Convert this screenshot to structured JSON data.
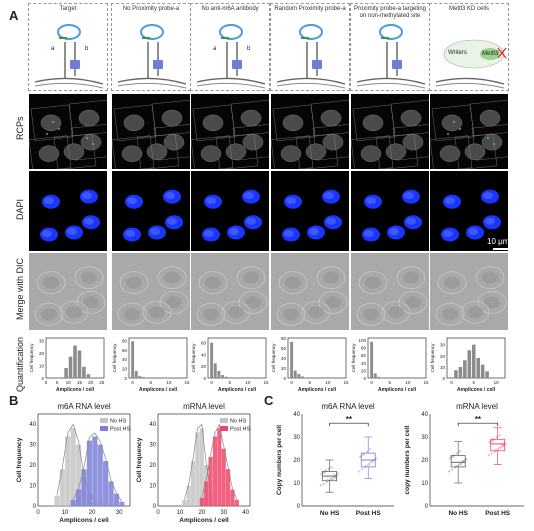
{
  "panel_labels": {
    "a": "A",
    "b": "B",
    "c": "C"
  },
  "schematics": [
    {
      "title": "Target",
      "labels": [
        "a",
        "b"
      ]
    },
    {
      "title": "No Proximity probe-a",
      "labels": []
    },
    {
      "title": "No anti-m6A antibody",
      "labels": [
        "a",
        "b"
      ]
    },
    {
      "title": "Random Proximity probe-a",
      "labels": []
    },
    {
      "title": "Proximity probe-a targeting on non-methylated site",
      "labels": []
    },
    {
      "title": "Mettl3 KD cells",
      "labels": [
        "Writers",
        "Mettl3"
      ]
    }
  ],
  "row_labels": {
    "rcp": "RCPs",
    "dapi": "DAPI",
    "dic": "Merge with DIC",
    "quant": "Quantification"
  },
  "scale_bar": "10 μm",
  "hist_common": {
    "ylabel": "Cell frequency",
    "xlabel": "Amplicons / cell"
  },
  "colors": {
    "bar_gray": "#8c8c8c",
    "no_hs": "#c4c4c4",
    "m6a_post_hs": "#7b7fd6",
    "mrna_post_hs": "#f0466a",
    "dapi_blue": "#1a35ff"
  },
  "chart_data": [
    {
      "type": "bar",
      "panel": "A-1",
      "xticks": [
        0,
        5,
        10,
        15,
        20,
        25
      ],
      "yticks": [
        0,
        10,
        20,
        30
      ],
      "x": [
        9,
        11,
        13,
        15,
        17,
        19
      ],
      "values": [
        8,
        17,
        26,
        22,
        9,
        3
      ],
      "xlim": [
        0,
        26
      ],
      "ylim": [
        0,
        32
      ],
      "xlabel": "Amplicons / cell",
      "ylabel": "Cell frequency"
    },
    {
      "type": "bar",
      "panel": "A-2",
      "xticks": [
        0,
        5,
        10,
        15
      ],
      "yticks": [
        0,
        20,
        40,
        60,
        80
      ],
      "x": [
        0,
        1,
        2,
        3,
        4
      ],
      "values": [
        78,
        15,
        4,
        2,
        1
      ],
      "xlim": [
        -1,
        15
      ],
      "ylim": [
        0,
        85
      ],
      "xlabel": "Amplicons / cell",
      "ylabel": "Cell frequency"
    },
    {
      "type": "bar",
      "panel": "A-3",
      "xticks": [
        0,
        5,
        10,
        15
      ],
      "yticks": [
        0,
        20,
        40,
        60
      ],
      "x": [
        0,
        1,
        2,
        3,
        4
      ],
      "values": [
        60,
        25,
        12,
        5,
        2
      ],
      "xlim": [
        -1,
        15
      ],
      "ylim": [
        0,
        68
      ],
      "xlabel": "Amplicons / cell",
      "ylabel": "Cell frequency"
    },
    {
      "type": "bar",
      "panel": "A-4",
      "xticks": [
        0,
        5,
        10,
        15
      ],
      "yticks": [
        0,
        20,
        40,
        60,
        80
      ],
      "x": [
        0,
        1,
        2,
        3,
        4
      ],
      "values": [
        72,
        15,
        8,
        3,
        1
      ],
      "xlim": [
        -1,
        15
      ],
      "ylim": [
        0,
        80
      ],
      "xlabel": "Amplicons / cell",
      "ylabel": "Cell frequency"
    },
    {
      "type": "bar",
      "panel": "A-5",
      "xticks": [
        0,
        5,
        10,
        15
      ],
      "yticks": [
        0,
        20,
        40,
        60,
        80,
        100
      ],
      "x": [
        0,
        1,
        2,
        3
      ],
      "values": [
        95,
        12,
        3,
        1
      ],
      "xlim": [
        -1,
        15
      ],
      "ylim": [
        0,
        105
      ],
      "xlabel": "Amplicons / cell",
      "ylabel": "Cell frequency"
    },
    {
      "type": "bar",
      "panel": "A-6",
      "xticks": [
        0,
        5,
        10
      ],
      "yticks": [
        0,
        10,
        20,
        30
      ],
      "x": [
        1,
        2,
        3,
        4,
        5,
        6,
        7,
        8
      ],
      "values": [
        7,
        10,
        16,
        25,
        30,
        18,
        12,
        6
      ],
      "xlim": [
        -1,
        12
      ],
      "ylim": [
        0,
        36
      ],
      "xlabel": "Amplicons / cell",
      "ylabel": "Cell frequency"
    },
    {
      "type": "bar",
      "panel": "B-1",
      "title": "m6A RNA level",
      "xlabel": "Amplicons / cell",
      "ylabel": "Cell frequency",
      "xticks": [
        0,
        10,
        20,
        30
      ],
      "yticks": [
        0,
        10,
        20,
        30,
        40
      ],
      "xlim": [
        0,
        34
      ],
      "ylim": [
        0,
        45
      ],
      "series": [
        {
          "name": "No HS",
          "x": [
            7,
            9,
            11,
            13,
            15,
            17,
            19,
            21
          ],
          "values": [
            5,
            18,
            34,
            38,
            30,
            14,
            6,
            2
          ]
        },
        {
          "name": "Post HS",
          "x": [
            13,
            15,
            17,
            19,
            21,
            23,
            25,
            27,
            29,
            31
          ],
          "values": [
            3,
            8,
            18,
            32,
            34,
            30,
            22,
            12,
            6,
            2
          ]
        }
      ]
    },
    {
      "type": "bar",
      "panel": "B-2",
      "title": "mRNA level",
      "xlabel": "Amplicons / cell",
      "ylabel": "Cell frequency",
      "xticks": [
        0,
        10,
        20,
        30,
        40
      ],
      "yticks": [
        0,
        10,
        20,
        30,
        40
      ],
      "xlim": [
        0,
        42
      ],
      "ylim": [
        0,
        45
      ],
      "series": [
        {
          "name": "No HS",
          "x": [
            12,
            14,
            16,
            18,
            20,
            22,
            24
          ],
          "values": [
            3,
            10,
            22,
            36,
            38,
            20,
            6
          ]
        },
        {
          "name": "Post HS",
          "x": [
            20,
            22,
            24,
            26,
            28,
            30,
            32,
            34,
            36
          ],
          "values": [
            4,
            12,
            24,
            34,
            38,
            28,
            18,
            8,
            3
          ]
        }
      ]
    },
    {
      "type": "box",
      "panel": "C-1",
      "title": "m6A RNA level",
      "ylabel": "Copy numbers per cell",
      "categories": [
        "No HS",
        "Post HS"
      ],
      "yticks": [
        0,
        10,
        20,
        30,
        40
      ],
      "ylim": [
        0,
        40
      ],
      "boxes": [
        {
          "min": 6,
          "q1": 11,
          "median": 13,
          "q3": 15,
          "max": 20
        },
        {
          "min": 12,
          "q1": 17,
          "median": 20,
          "q3": 23,
          "max": 30
        }
      ],
      "significance": "**"
    },
    {
      "type": "box",
      "panel": "C-2",
      "title": "mRNA level",
      "ylabel": "copy numbers per cell",
      "categories": [
        "No HS",
        "Post HS"
      ],
      "yticks": [
        0,
        10,
        20,
        30,
        40
      ],
      "ylim": [
        0,
        40
      ],
      "boxes": [
        {
          "min": 10,
          "q1": 17,
          "median": 19,
          "q3": 22,
          "max": 28
        },
        {
          "min": 18,
          "q1": 24,
          "median": 27,
          "q3": 29,
          "max": 34
        }
      ],
      "significance": "**"
    }
  ]
}
